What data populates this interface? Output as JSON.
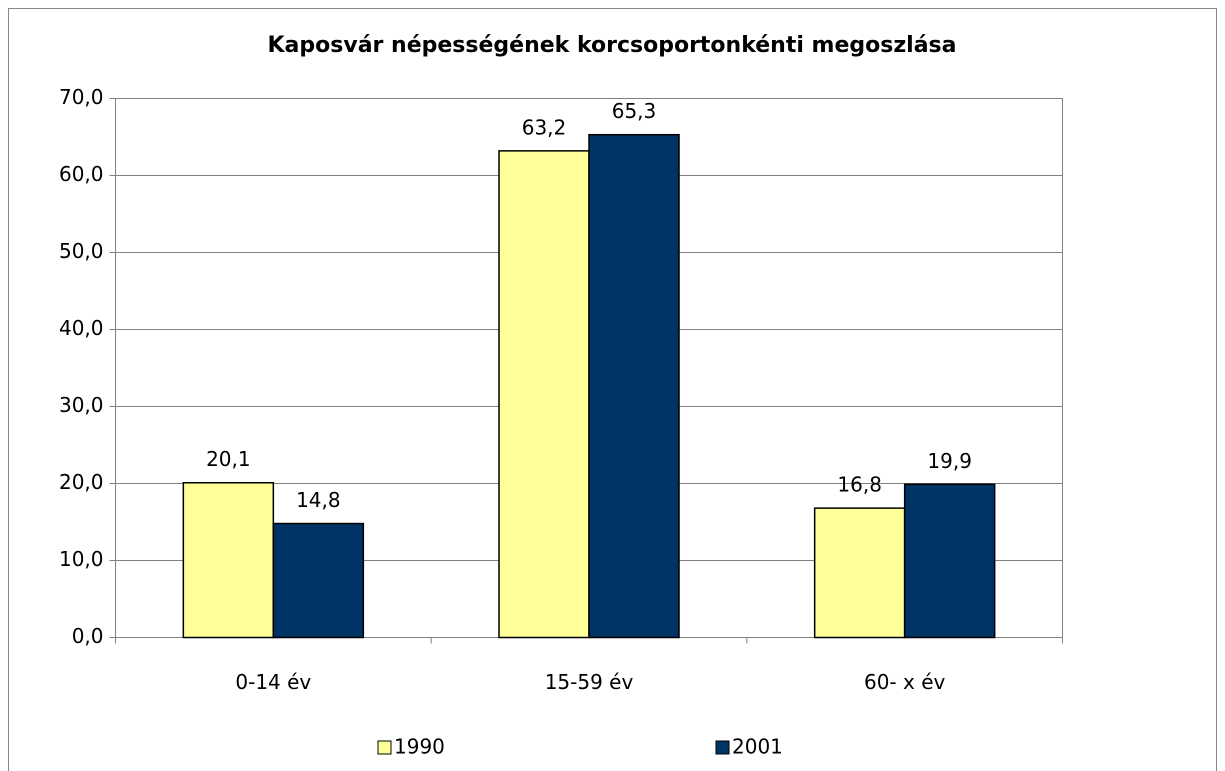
{
  "chart_data": {
    "type": "bar",
    "title": "Kaposvár népességének korcsoportonkénti megoszlása",
    "categories": [
      "0-14 év",
      "15-59 év",
      "60- x év"
    ],
    "series": [
      {
        "name": "1990",
        "color": "#ffff99",
        "values": [
          20.1,
          63.2,
          16.8
        ],
        "value_labels": [
          "20,1",
          "63,2",
          "16,8"
        ]
      },
      {
        "name": "2001",
        "color": "#003366",
        "values": [
          14.8,
          65.3,
          19.9
        ],
        "value_labels": [
          "14,8",
          "65,3",
          "19,9"
        ]
      }
    ],
    "ylim": [
      0,
      70
    ],
    "yticks": [
      {
        "value": 0,
        "label": "0,0"
      },
      {
        "value": 10,
        "label": "10,0"
      },
      {
        "value": 20,
        "label": "20,0"
      },
      {
        "value": 30,
        "label": "30,0"
      },
      {
        "value": 40,
        "label": "40,0"
      },
      {
        "value": 50,
        "label": "50,0"
      },
      {
        "value": 60,
        "label": "60,0"
      },
      {
        "value": 70,
        "label": "70,0"
      }
    ],
    "grid": true,
    "legend": "bottom"
  }
}
